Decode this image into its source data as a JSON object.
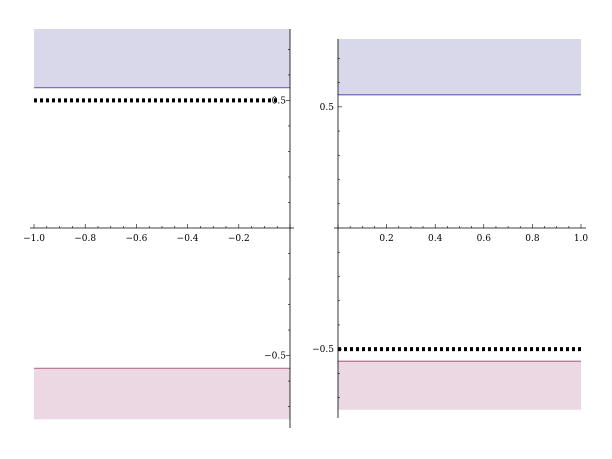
{
  "chart_data": [
    {
      "type": "area",
      "title": "",
      "xlabel": "",
      "ylabel": "",
      "xlim": [
        -1.0,
        0.0
      ],
      "ylim": [
        -0.75,
        0.78
      ],
      "grid": false,
      "xticks": [
        -1.0,
        -0.8,
        -0.6,
        -0.4,
        -0.2
      ],
      "xtick_labels": [
        "−1.0",
        "−0.8",
        "−0.6",
        "−0.4",
        "−0.2"
      ],
      "yticks": [
        0.5,
        -0.5
      ],
      "ytick_labels": [
        "0.5",
        "−0.5"
      ],
      "bands": [
        {
          "y_from": 0.55,
          "y_to": 0.78,
          "fill": "#d8d8ea",
          "edge": "#6a6ab4"
        },
        {
          "y_from": -0.75,
          "y_to": -0.55,
          "fill": "#ecd8e2",
          "edge": "#b47090"
        }
      ],
      "series": [
        {
          "style": "dotted",
          "color": "#000000",
          "x": [
            -1.0,
            -0.05
          ],
          "y": [
            0.5,
            0.5
          ]
        }
      ]
    },
    {
      "type": "area",
      "title": "",
      "xlabel": "",
      "ylabel": "",
      "xlim": [
        0.0,
        1.0
      ],
      "ylim": [
        -0.75,
        0.78
      ],
      "grid": false,
      "xticks": [
        0.2,
        0.4,
        0.6,
        0.8,
        1.0
      ],
      "xtick_labels": [
        "0.2",
        "0.4",
        "0.6",
        "0.8",
        "1.0"
      ],
      "yticks": [
        0.5,
        -0.5
      ],
      "ytick_labels": [
        "0.5",
        "−0.5"
      ],
      "bands": [
        {
          "y_from": 0.55,
          "y_to": 0.78,
          "fill": "#d8d8ea",
          "edge": "#6a6ab4"
        },
        {
          "y_from": -0.75,
          "y_to": -0.55,
          "fill": "#ecd8e2",
          "edge": "#b47090"
        }
      ],
      "series": [
        {
          "style": "dotted",
          "color": "#000000",
          "x": [
            0.0,
            1.0
          ],
          "y": [
            -0.5,
            -0.5
          ]
        }
      ]
    }
  ]
}
